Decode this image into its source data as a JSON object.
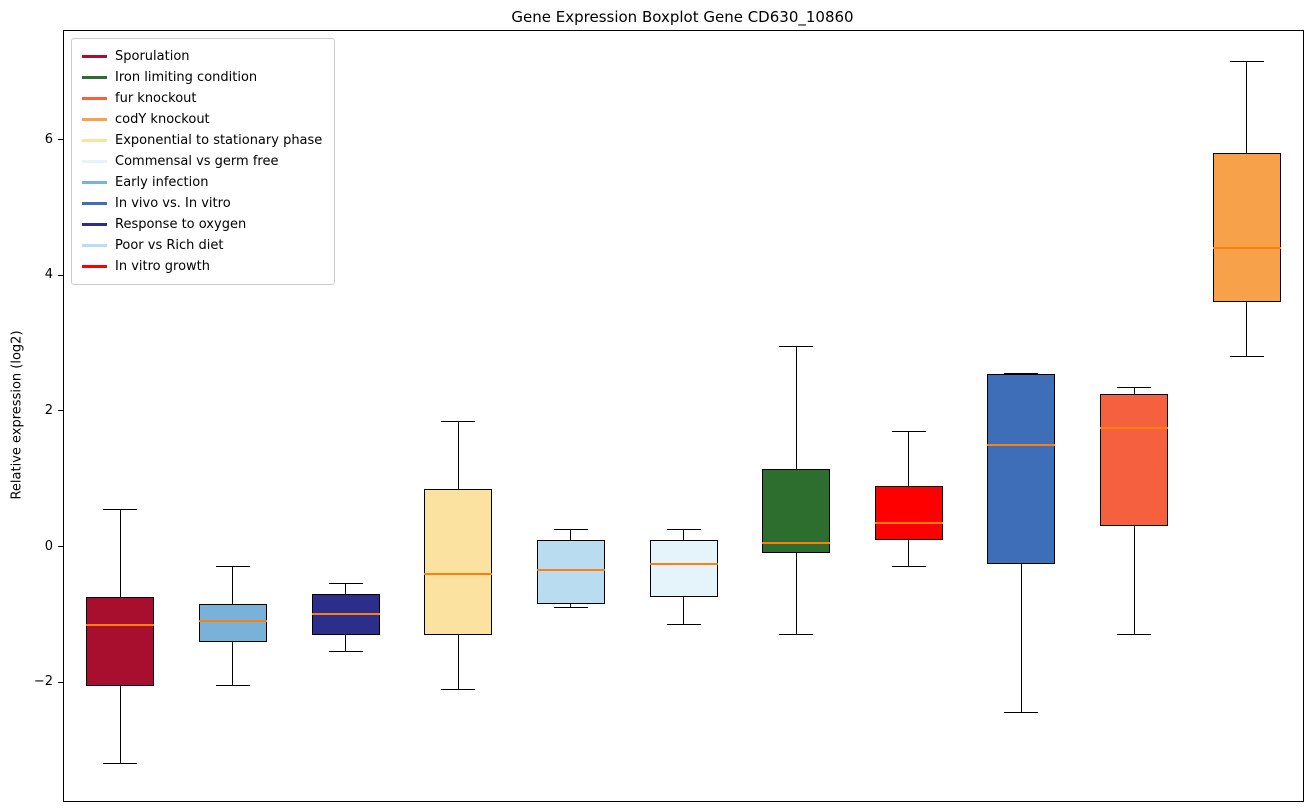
{
  "chart_data": {
    "type": "boxplot",
    "title": "Gene Expression Boxplot Gene CD630_10860",
    "ylabel": "Relative expression (log2)",
    "ylim": [
      -3.75,
      7.6
    ],
    "yticks": [
      {
        "value": -2,
        "label": "−2"
      },
      {
        "value": 0,
        "label": "0"
      },
      {
        "value": 2,
        "label": "2"
      },
      {
        "value": 4,
        "label": "4"
      },
      {
        "value": 6,
        "label": "6"
      }
    ],
    "grid": false,
    "legend_position": "upper left",
    "median_color": "#ff7f0e",
    "legend": [
      {
        "label": "Sporulation",
        "color": "#a80f2f"
      },
      {
        "label": "Iron limiting condition",
        "color": "#2d6e2f"
      },
      {
        "label": "fur knockout",
        "color": "#f5613e"
      },
      {
        "label": "codY knockout",
        "color": "#f7a24b"
      },
      {
        "label": "Exponential to stationary phase",
        "color": "#fce2a0"
      },
      {
        "label": "Commensal vs germ free",
        "color": "#e4f4fa"
      },
      {
        "label": "Early infection",
        "color": "#79b1d9"
      },
      {
        "label": "In vivo vs. In vitro",
        "color": "#3e6eb8"
      },
      {
        "label": "Response to oxygen",
        "color": "#2c2e8c"
      },
      {
        "label": "Poor vs Rich diet",
        "color": "#b9dcf0"
      },
      {
        "label": "In vitro growth",
        "color": "#ff0000"
      }
    ],
    "boxes": [
      {
        "label": "Sporulation",
        "color": "#a80f2f",
        "whisker_low": -3.2,
        "q1": -2.05,
        "median": -1.15,
        "q3": -0.75,
        "whisker_high": 0.55
      },
      {
        "label": "Early infection",
        "color": "#79b1d9",
        "whisker_low": -2.05,
        "q1": -1.4,
        "median": -1.1,
        "q3": -0.85,
        "whisker_high": -0.3
      },
      {
        "label": "Response to oxygen",
        "color": "#2c2e8c",
        "whisker_low": -1.55,
        "q1": -1.3,
        "median": -1.0,
        "q3": -0.7,
        "whisker_high": -0.55
      },
      {
        "label": "Exponential to stationary phase",
        "color": "#fce2a0",
        "whisker_low": -2.1,
        "q1": -1.3,
        "median": -0.4,
        "q3": 0.85,
        "whisker_high": 1.85
      },
      {
        "label": "Poor vs Rich diet",
        "color": "#b9dcf0",
        "whisker_low": -0.9,
        "q1": -0.85,
        "median": -0.35,
        "q3": 0.1,
        "whisker_high": 0.25
      },
      {
        "label": "Commensal vs germ free",
        "color": "#e4f4fa",
        "whisker_low": -1.15,
        "q1": -0.75,
        "median": -0.25,
        "q3": 0.1,
        "whisker_high": 0.25
      },
      {
        "label": "Iron limiting condition",
        "color": "#2d6e2f",
        "whisker_low": -1.3,
        "q1": -0.1,
        "median": 0.05,
        "q3": 1.15,
        "whisker_high": 2.95
      },
      {
        "label": "In vitro growth",
        "color": "#ff0000",
        "whisker_low": -0.3,
        "q1": 0.1,
        "median": 0.35,
        "q3": 0.9,
        "whisker_high": 1.7
      },
      {
        "label": "In vivo vs. In vitro",
        "color": "#3e6eb8",
        "whisker_low": -2.45,
        "q1": -0.25,
        "median": 1.5,
        "q3": 2.55,
        "whisker_high": 2.55
      },
      {
        "label": "fur knockout",
        "color": "#f5613e",
        "whisker_low": -1.3,
        "q1": 0.3,
        "median": 1.75,
        "q3": 2.25,
        "whisker_high": 2.35
      },
      {
        "label": "codY knockout",
        "color": "#f7a24b",
        "whisker_low": 2.8,
        "q1": 3.6,
        "median": 4.4,
        "q3": 5.8,
        "whisker_high": 7.15
      }
    ]
  }
}
